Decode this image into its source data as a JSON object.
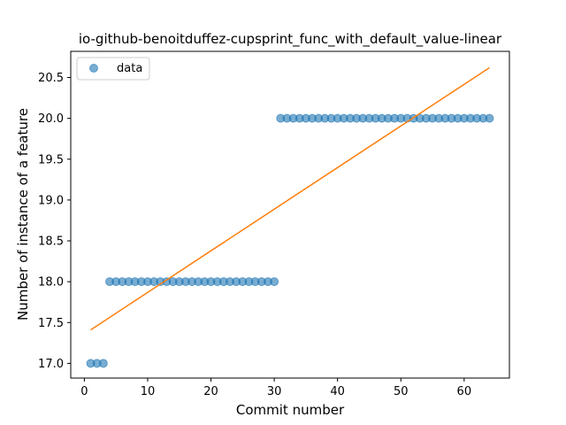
{
  "chart_data": {
    "type": "scatter",
    "title": "io-github-benoitduffez-cupsprint_func_with_default_value-linear",
    "xlabel": "Commit number",
    "ylabel": "Number of instance of a feature",
    "xlim": [
      -2.15,
      67.15
    ],
    "ylim": [
      16.82,
      20.82
    ],
    "xticks": [
      0,
      10,
      20,
      30,
      40,
      50,
      60
    ],
    "yticks": [
      17.0,
      17.5,
      18.0,
      18.5,
      19.0,
      19.5,
      20.0,
      20.5
    ],
    "ytick_labels": [
      "17.0",
      "17.5",
      "18.0",
      "18.5",
      "19.0",
      "19.5",
      "20.0",
      "20.5"
    ],
    "grid": false,
    "legend_placement": "top-left",
    "series": [
      {
        "name": "data",
        "kind": "scatter",
        "color": "#1f77b4",
        "x": [
          1,
          2,
          3,
          4,
          5,
          6,
          7,
          8,
          9,
          10,
          11,
          12,
          13,
          14,
          15,
          16,
          17,
          18,
          19,
          20,
          21,
          22,
          23,
          24,
          25,
          26,
          27,
          28,
          29,
          30,
          31,
          32,
          33,
          34,
          35,
          36,
          37,
          38,
          39,
          40,
          41,
          42,
          43,
          44,
          45,
          46,
          47,
          48,
          49,
          50,
          51,
          52,
          53,
          54,
          55,
          56,
          57,
          58,
          59,
          60,
          61,
          62,
          63,
          64
        ],
        "y": [
          17,
          17,
          17,
          18,
          18,
          18,
          18,
          18,
          18,
          18,
          18,
          18,
          18,
          18,
          18,
          18,
          18,
          18,
          18,
          18,
          18,
          18,
          18,
          18,
          18,
          18,
          18,
          18,
          18,
          18,
          20,
          20,
          20,
          20,
          20,
          20,
          20,
          20,
          20,
          20,
          20,
          20,
          20,
          20,
          20,
          20,
          20,
          20,
          20,
          20,
          20,
          20,
          20,
          20,
          20,
          20,
          20,
          20,
          20,
          20,
          20,
          20,
          20,
          20
        ]
      },
      {
        "kind": "line",
        "color": "#ff7f0e",
        "x": [
          1,
          64
        ],
        "y": [
          17.41,
          20.62
        ]
      }
    ]
  }
}
